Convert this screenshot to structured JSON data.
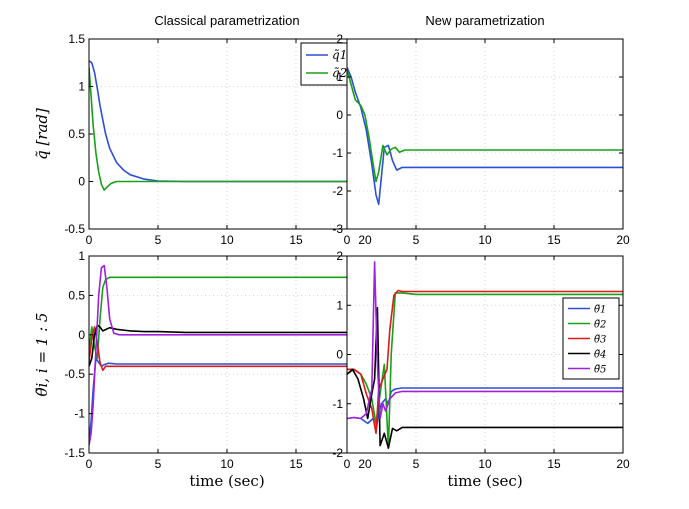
{
  "chart_data": [
    {
      "id": "tl",
      "type": "line",
      "title": "Classical parametrization",
      "ylabel": "q̃ [rad]",
      "xlabel": "",
      "xlim": [
        0,
        20
      ],
      "ylim": [
        -0.5,
        1.5
      ],
      "xticks": [
        0,
        5,
        10,
        15,
        20
      ],
      "yticks": [
        -0.5,
        0,
        0.5,
        1,
        1.5
      ],
      "grid": true,
      "legend_position": "top-right",
      "series": [
        {
          "name": "q̃1",
          "color": "#2b4fd8",
          "x": [
            0,
            0.2,
            0.4,
            0.6,
            0.8,
            1,
            1.2,
            1.5,
            2,
            2.5,
            3,
            4,
            5,
            7,
            10,
            20
          ],
          "y": [
            1.27,
            1.25,
            1.15,
            0.98,
            0.8,
            0.65,
            0.5,
            0.35,
            0.2,
            0.12,
            0.07,
            0.025,
            0.005,
            0,
            0,
            0
          ]
        },
        {
          "name": "q̃2",
          "color": "#18a018",
          "x": [
            0,
            0.15,
            0.3,
            0.5,
            0.7,
            0.9,
            1.1,
            1.3,
            1.6,
            2,
            2.5,
            3,
            5,
            20
          ],
          "y": [
            1.2,
            0.9,
            0.6,
            0.3,
            0.1,
            -0.03,
            -0.09,
            -0.06,
            -0.02,
            0,
            0,
            0,
            0,
            0
          ]
        }
      ]
    },
    {
      "id": "tr",
      "type": "line",
      "title": "New parametrization",
      "ylabel": "",
      "xlabel": "",
      "xlim": [
        0,
        20
      ],
      "ylim": [
        -3,
        2
      ],
      "xticks": [
        0,
        5,
        10,
        15,
        20
      ],
      "yticks": [
        -3,
        -2,
        -1,
        0,
        1,
        2
      ],
      "grid": true,
      "series": [
        {
          "name": "blue",
          "color": "#2b4fd8",
          "x": [
            0,
            0.3,
            0.6,
            1,
            1.4,
            1.8,
            2.1,
            2.3,
            2.5,
            2.7,
            3,
            3.3,
            3.6,
            4,
            5,
            20
          ],
          "y": [
            1.25,
            1.0,
            0.6,
            0.2,
            -0.4,
            -1.3,
            -2.1,
            -2.35,
            -1.6,
            -0.85,
            -0.8,
            -1.2,
            -1.45,
            -1.38,
            -1.38,
            -1.38
          ]
        },
        {
          "name": "green",
          "color": "#18a018",
          "x": [
            0,
            0.3,
            0.6,
            1,
            1.3,
            1.6,
            1.9,
            2.1,
            2.3,
            2.6,
            2.9,
            3.2,
            3.5,
            3.8,
            4.2,
            5,
            20
          ],
          "y": [
            1.2,
            0.8,
            0.4,
            0.25,
            0,
            -0.6,
            -1.3,
            -1.75,
            -1.5,
            -0.8,
            -1.05,
            -0.9,
            -0.85,
            -0.98,
            -0.92,
            -0.92,
            -0.92
          ]
        }
      ]
    },
    {
      "id": "bl",
      "type": "line",
      "title": "",
      "ylabel": "θ̃i,  i = 1 : 5",
      "xlabel": "time (sec)",
      "xlim": [
        0,
        20
      ],
      "ylim": [
        -1.5,
        1
      ],
      "xticks": [
        0,
        5,
        10,
        15,
        20
      ],
      "yticks": [
        -1.5,
        -1,
        -0.5,
        0,
        0.5,
        1
      ],
      "grid": true,
      "series": [
        {
          "name": "blue",
          "color": "#2b4fd8",
          "x": [
            0,
            0.15,
            0.3,
            0.5,
            0.7,
            0.9,
            1.1,
            1.4,
            2,
            3,
            20
          ],
          "y": [
            -1.35,
            -1.1,
            -0.7,
            -0.3,
            -0.35,
            -0.4,
            -0.38,
            -0.36,
            -0.37,
            -0.37,
            -0.37
          ]
        },
        {
          "name": "green",
          "color": "#18a018",
          "x": [
            0,
            0.2,
            0.4,
            0.6,
            0.8,
            1,
            1.2,
            1.5,
            2,
            3,
            20
          ],
          "y": [
            -0.2,
            0.1,
            -0.15,
            -0.3,
            0.2,
            0.6,
            0.7,
            0.73,
            0.73,
            0.73,
            0.73
          ]
        },
        {
          "name": "red",
          "color": "#e01818",
          "x": [
            0,
            0.2,
            0.4,
            0.6,
            0.8,
            1,
            1.2,
            1.5,
            2,
            20
          ],
          "y": [
            -0.35,
            -0.05,
            0.1,
            -0.1,
            -0.35,
            -0.45,
            -0.4,
            -0.4,
            -0.4,
            -0.4
          ]
        },
        {
          "name": "black",
          "color": "#000000",
          "x": [
            0,
            0.2,
            0.4,
            0.6,
            0.8,
            1,
            1.5,
            2,
            3,
            4,
            5,
            7,
            20
          ],
          "y": [
            -0.4,
            -0.3,
            0,
            0.12,
            0.1,
            0.05,
            0.09,
            0.07,
            0.05,
            0.04,
            0.04,
            0.03,
            0.03
          ]
        },
        {
          "name": "magenta",
          "color": "#a020e0",
          "x": [
            0,
            0.15,
            0.3,
            0.5,
            0.7,
            0.9,
            1.1,
            1.3,
            1.5,
            1.8,
            2.2,
            3,
            20
          ],
          "y": [
            -1.4,
            -1.25,
            -0.9,
            -0.2,
            0.5,
            0.85,
            0.88,
            0.6,
            0.2,
            0.02,
            0,
            0,
            0
          ]
        }
      ]
    },
    {
      "id": "br",
      "type": "line",
      "title": "",
      "ylabel": "",
      "xlabel": "time (sec)",
      "xlim": [
        0,
        20
      ],
      "ylim": [
        -2,
        2
      ],
      "xticks": [
        0,
        5,
        10,
        15,
        20
      ],
      "yticks": [
        -2,
        -1,
        0,
        1,
        2
      ],
      "grid": true,
      "legend_position": "right",
      "series": [
        {
          "name": "θ̃1",
          "color": "#2b4fd8",
          "x": [
            0,
            0.5,
            1,
            1.5,
            1.9,
            2.1,
            2.3,
            2.5,
            2.8,
            3,
            3.2,
            3.5,
            4,
            5,
            20
          ],
          "y": [
            -1.3,
            -1.28,
            -1.3,
            -1.4,
            -1.3,
            -1.55,
            -1.2,
            -1.0,
            -0.9,
            -1.0,
            -0.75,
            -0.7,
            -0.68,
            -0.68,
            -0.68
          ]
        },
        {
          "name": "θ̃2",
          "color": "#18a018",
          "x": [
            0,
            0.5,
            1,
            1.4,
            1.8,
            2.1,
            2.4,
            2.7,
            3,
            3.2,
            3.5,
            4,
            5,
            20
          ],
          "y": [
            -0.4,
            -0.3,
            -0.4,
            -0.6,
            -0.9,
            -1.4,
            -0.8,
            -0.2,
            -1.9,
            0,
            1.25,
            1.25,
            1.22,
            1.22
          ]
        },
        {
          "name": "θ̃3",
          "color": "#e01818",
          "x": [
            0,
            0.5,
            1,
            1.4,
            1.8,
            2.1,
            2.3,
            2.6,
            2.9,
            3.1,
            3.4,
            3.7,
            4,
            5,
            20
          ],
          "y": [
            -0.3,
            -0.3,
            -0.4,
            -0.8,
            -1.1,
            -1.6,
            -0.7,
            -0.5,
            -0.3,
            0.5,
            1.2,
            1.3,
            1.28,
            1.28,
            1.28
          ]
        },
        {
          "name": "θ̃4",
          "color": "#000000",
          "x": [
            0,
            0.4,
            0.8,
            1.2,
            1.5,
            1.8,
            2.0,
            2.2,
            2.4,
            2.7,
            3.0,
            3.3,
            3.6,
            4,
            5,
            20
          ],
          "y": [
            -0.4,
            -0.3,
            -0.5,
            -0.9,
            -1.3,
            -0.8,
            -0.5,
            0.95,
            -1.85,
            -1.6,
            -1.9,
            -1.5,
            -1.55,
            -1.48,
            -1.48,
            -1.48
          ]
        },
        {
          "name": "θ̃5",
          "color": "#a020e0",
          "x": [
            0,
            0.5,
            1,
            1.4,
            1.8,
            2.0,
            2.2,
            2.4,
            2.6,
            2.8,
            3.1,
            3.5,
            4,
            5,
            20
          ],
          "y": [
            -1.3,
            -1.28,
            -1.3,
            -1.2,
            -0.7,
            1.88,
            -0.2,
            -1.3,
            -1.0,
            -1.15,
            -0.9,
            -0.78,
            -0.75,
            -0.75,
            -0.75
          ]
        }
      ]
    }
  ]
}
